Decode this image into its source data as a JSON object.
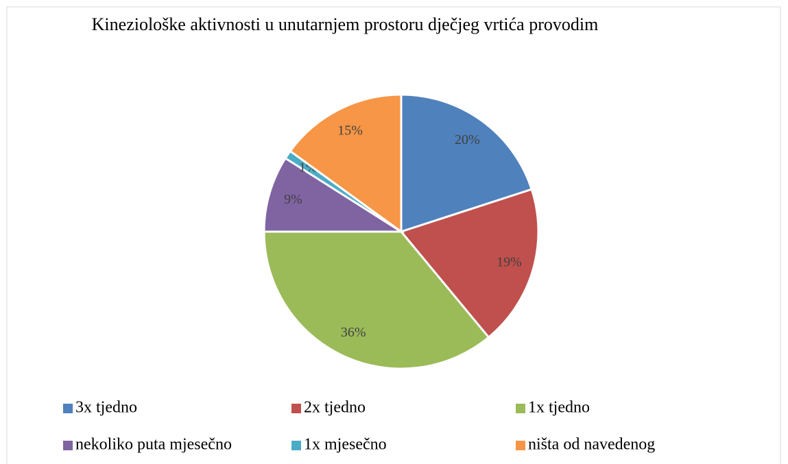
{
  "chart_data": {
    "type": "pie",
    "title": "Kineziološke aktivnosti u unutarnjem prostoru dječjeg vrtića provodim",
    "categories": [
      "3x tjedno",
      "2x tjedno",
      "1x tjedno",
      "nekoliko puta mjesečno",
      "1x mjesečno",
      "ništa od navedenog"
    ],
    "values": [
      20,
      19,
      36,
      9,
      1,
      15
    ],
    "value_labels": [
      "20%",
      "19%",
      "36%",
      "9%",
      "1%",
      "15%"
    ],
    "colors": [
      "#4f81bd",
      "#c0504d",
      "#9bbb59",
      "#8064a2",
      "#4bacc6",
      "#f79646"
    ],
    "legend": "bottom"
  }
}
